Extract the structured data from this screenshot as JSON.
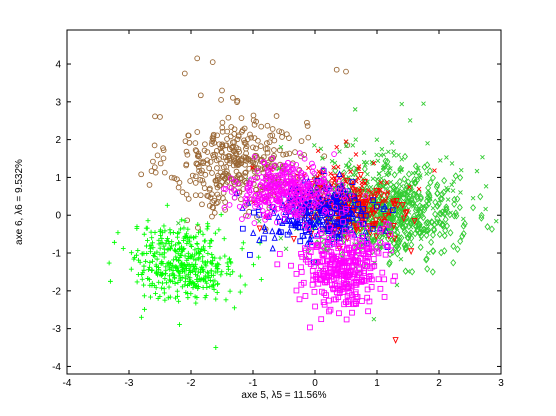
{
  "chart_data": {
    "type": "scatter",
    "title": "",
    "xlabel": "axe 5,  λ5 = 11.56%",
    "ylabel": "axe 6,  λ6 = 9.532%",
    "xlim": [
      -4,
      3
    ],
    "ylim": [
      -4.2,
      4.9
    ],
    "xticks": [
      -4,
      -3,
      -2,
      -1,
      0,
      1,
      2,
      3
    ],
    "yticks": [
      -4,
      -3,
      -2,
      -1,
      0,
      1,
      2,
      3,
      4
    ],
    "grid": false,
    "legend": "none",
    "series": [
      {
        "marker": "circle",
        "color": "#996633",
        "cx": -1.25,
        "cy": 1.35,
        "sx": 0.55,
        "sy": 0.65,
        "n": 380,
        "extra": [
          [
            -1.9,
            4.15
          ],
          [
            -1.65,
            4.05
          ],
          [
            0.35,
            3.85
          ],
          [
            0.5,
            3.8
          ],
          [
            -2.1,
            3.75
          ],
          [
            -1.5,
            3.3
          ],
          [
            -2.5,
            2.6
          ]
        ]
      },
      {
        "marker": "plus",
        "color": "#00ff00",
        "cx": -2.1,
        "cy": -1.25,
        "sx": 0.42,
        "sy": 0.5,
        "n": 420,
        "extra": [
          [
            -1.6,
            -3.5
          ],
          [
            -2.8,
            -2.7
          ],
          [
            -3.3,
            -1.75
          ],
          [
            -1.3,
            -2.45
          ]
        ]
      },
      {
        "marker": "diamond",
        "color": "#33cc33",
        "cx": 1.25,
        "cy": 0.0,
        "sx": 0.55,
        "sy": 0.55,
        "n": 520,
        "extra": [
          [
            2.3,
            -0.9
          ],
          [
            1.9,
            -1.5
          ],
          [
            2.55,
            0.2
          ]
        ]
      },
      {
        "marker": "x",
        "color": "#33cc33",
        "cx": 0.9,
        "cy": 0.45,
        "sx": 0.75,
        "sy": 0.75,
        "n": 260,
        "extra": [
          [
            1.75,
            2.95
          ],
          [
            0.95,
            -2.75
          ],
          [
            2.55,
            0.45
          ]
        ]
      },
      {
        "marker": "x",
        "color": "#ff0000",
        "cx": 0.35,
        "cy": 0.55,
        "sx": 0.5,
        "sy": 0.45,
        "n": 140,
        "extra": [
          [
            0.5,
            1.95
          ],
          [
            0.35,
            1.8
          ]
        ]
      },
      {
        "marker": "triangle-down",
        "color": "#ff0000",
        "cx": 0.55,
        "cy": 0.1,
        "sx": 0.45,
        "sy": 0.45,
        "n": 160,
        "extra": [
          [
            1.3,
            -3.3
          ],
          [
            1.55,
            -0.95
          ]
        ]
      },
      {
        "marker": "triangle-up",
        "color": "#0000ff",
        "cx": -0.05,
        "cy": 0.05,
        "sx": 0.45,
        "sy": 0.4,
        "n": 160,
        "extra": [
          [
            -0.65,
            -0.6
          ],
          [
            1.05,
            -0.35
          ]
        ]
      },
      {
        "marker": "square",
        "color": "#0000ff",
        "cx": 0.2,
        "cy": 0.05,
        "sx": 0.45,
        "sy": 0.4,
        "n": 110,
        "extra": [
          [
            -1.05,
            -1.05
          ],
          [
            -0.55,
            -0.45
          ]
        ]
      },
      {
        "marker": "circle",
        "color": "#ff00ff",
        "cx": -0.45,
        "cy": 0.65,
        "sx": 0.4,
        "sy": 0.35,
        "n": 360,
        "extra": []
      },
      {
        "marker": "square",
        "color": "#ff00ff",
        "cx": 0.45,
        "cy": -1.35,
        "sx": 0.32,
        "sy": 0.55,
        "n": 340,
        "extra": [
          [
            0.1,
            -2.75
          ],
          [
            0.25,
            -2.5
          ],
          [
            0.5,
            -2.3
          ]
        ]
      }
    ]
  }
}
